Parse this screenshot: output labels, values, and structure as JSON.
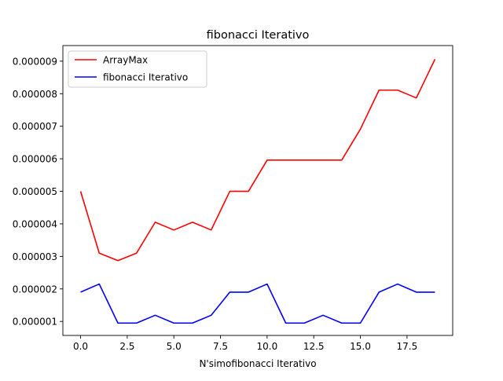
{
  "chart_data": {
    "type": "line",
    "title": "fibonacci Iterativo",
    "xlabel": "N'simofibonacci Iterativo",
    "ylabel": "",
    "xlim": [
      -0.95,
      19.95
    ],
    "ylim": [
      5.7e-07,
      9.48e-06
    ],
    "xticks": [
      0,
      2.5,
      5,
      7.5,
      10,
      12.5,
      15,
      17.5
    ],
    "xtick_labels": [
      "0.0",
      "2.5",
      "5.0",
      "7.5",
      "10.0",
      "12.5",
      "15.0",
      "17.5"
    ],
    "yticks": [
      1e-06,
      2e-06,
      3e-06,
      4e-06,
      5e-06,
      6e-06,
      7e-06,
      8e-06,
      9e-06
    ],
    "ytick_labels": [
      "0.000001",
      "0.000002",
      "0.000003",
      "0.000004",
      "0.000005",
      "0.000006",
      "0.000007",
      "0.000008",
      "0.000009"
    ],
    "grid": false,
    "legend_position": "top-left",
    "x": [
      0,
      1,
      2,
      3,
      4,
      5,
      6,
      7,
      8,
      9,
      10,
      11,
      12,
      13,
      14,
      15,
      16,
      17,
      18,
      19
    ],
    "series": [
      {
        "name": "ArrayMax",
        "color": "#ff0000",
        "values": [
          5e-06,
          3.1e-06,
          2.87e-06,
          3.1e-06,
          4.05e-06,
          3.81e-06,
          4.05e-06,
          3.81e-06,
          5e-06,
          5e-06,
          5.96e-06,
          5.96e-06,
          5.96e-06,
          5.96e-06,
          5.96e-06,
          6.91e-06,
          8.11e-06,
          8.11e-06,
          7.87e-06,
          9.06e-06
        ]
      },
      {
        "name": "fibonacci Iterativo",
        "color": "#0000ff",
        "values": [
          1.9e-06,
          2.15e-06,
          9.5e-07,
          9.5e-07,
          1.19e-06,
          9.5e-07,
          9.5e-07,
          1.19e-06,
          1.9e-06,
          1.9e-06,
          2.15e-06,
          9.5e-07,
          9.5e-07,
          1.19e-06,
          9.5e-07,
          9.5e-07,
          1.9e-06,
          2.15e-06,
          1.9e-06,
          1.9e-06
        ]
      }
    ]
  }
}
